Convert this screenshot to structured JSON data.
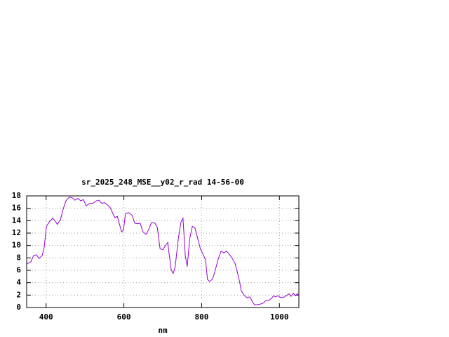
{
  "chart_data": {
    "type": "line",
    "title": "sr_2025_248_MSE__y02_r_rad 14-56-00",
    "x_label": "nm",
    "xlim": [
      350,
      1050
    ],
    "ylim": [
      0,
      18
    ],
    "xticks": [
      400,
      600,
      800,
      1000
    ],
    "yticks": [
      0,
      2,
      4,
      6,
      8,
      10,
      12,
      14,
      16,
      18
    ],
    "grid": true,
    "x": [
      350,
      361,
      368,
      375,
      382,
      390,
      395,
      401,
      408,
      417,
      424,
      429,
      437,
      444,
      451,
      460,
      467,
      474,
      482,
      489,
      496,
      503,
      512,
      520,
      529,
      536,
      543,
      550,
      557,
      565,
      572,
      577,
      583,
      588,
      594,
      599,
      604,
      612,
      621,
      628,
      635,
      642,
      649,
      657,
      664,
      671,
      680,
      686,
      693,
      700,
      707,
      713,
      716,
      722,
      727,
      732,
      740,
      747,
      752,
      758,
      763,
      769,
      776,
      783,
      790,
      797,
      805,
      810,
      815,
      821,
      828,
      835,
      842,
      850,
      857,
      864,
      871,
      879,
      886,
      891,
      897,
      902,
      909,
      916,
      924,
      931,
      936,
      943,
      951,
      958,
      965,
      972,
      980,
      985,
      990,
      996,
      1003,
      1010,
      1017,
      1025,
      1030,
      1036,
      1041,
      1046,
      1050
    ],
    "series": [
      {
        "name": "rad",
        "color": "#9400d3",
        "values": [
          7.0,
          7.4,
          8.4,
          8.5,
          7.9,
          8.4,
          9.7,
          13.1,
          13.8,
          14.4,
          13.9,
          13.4,
          14.2,
          15.9,
          17.2,
          17.8,
          17.7,
          17.3,
          17.6,
          17.2,
          17.4,
          16.4,
          16.8,
          16.8,
          17.2,
          17.3,
          16.8,
          16.9,
          16.6,
          16.1,
          15.1,
          14.5,
          14.7,
          13.6,
          12.2,
          12.5,
          15.1,
          15.3,
          14.9,
          13.6,
          13.5,
          13.6,
          12.2,
          11.8,
          12.6,
          13.7,
          13.6,
          12.9,
          9.5,
          9.3,
          10.0,
          10.5,
          8.8,
          6.0,
          5.5,
          6.6,
          11.1,
          13.8,
          14.4,
          8.3,
          6.6,
          11.0,
          13.1,
          12.8,
          11.1,
          9.4,
          8.4,
          7.7,
          4.5,
          4.2,
          4.6,
          6.0,
          7.7,
          9.1,
          8.8,
          9.1,
          8.6,
          7.9,
          7.1,
          5.9,
          4.3,
          2.7,
          2.0,
          1.6,
          1.7,
          0.9,
          0.45,
          0.45,
          0.55,
          0.7,
          1.1,
          1.1,
          1.5,
          1.9,
          1.7,
          1.9,
          1.6,
          1.6,
          1.9,
          2.2,
          1.8,
          2.3,
          1.9,
          2.2,
          2.0
        ]
      }
    ]
  }
}
